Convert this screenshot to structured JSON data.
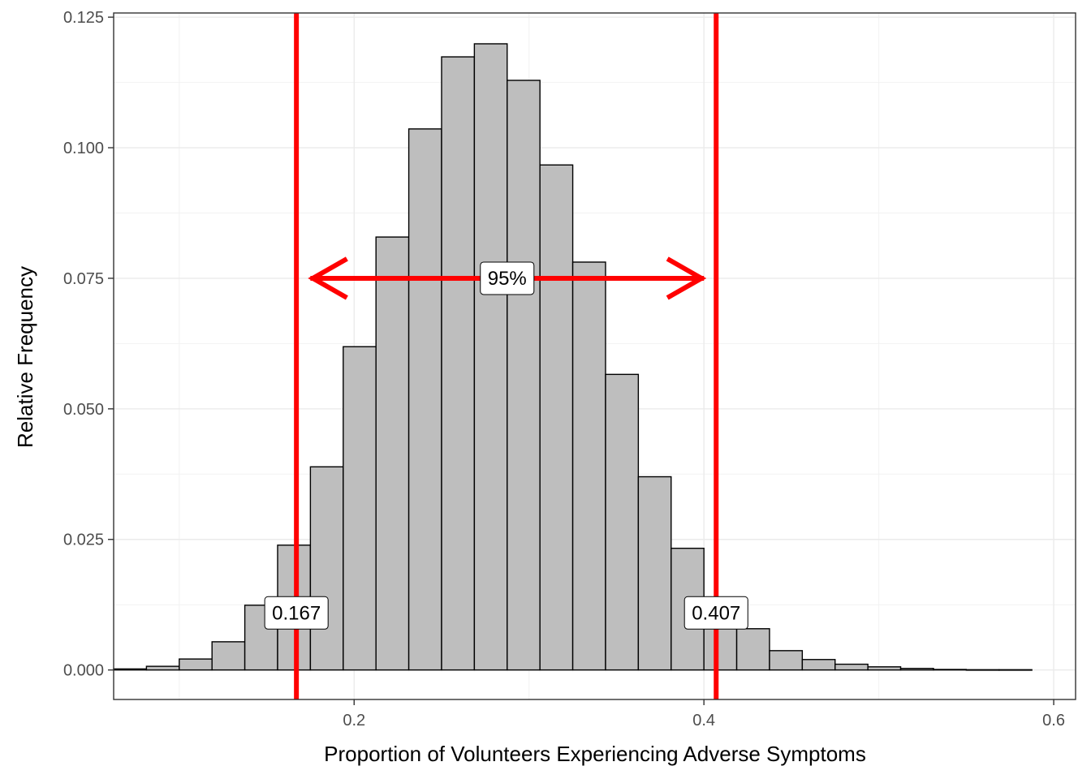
{
  "chart_data": {
    "type": "bar",
    "xlabel": "Proportion of Volunteers Experiencing Adverse Symptoms",
    "ylabel": "Relative Frequency",
    "xlim": [
      0.0625,
      0.6125
    ],
    "ylim": [
      -0.00565,
      0.1258
    ],
    "x_ticks": [
      {
        "value": 0.2,
        "label": "0.2"
      },
      {
        "value": 0.4,
        "label": "0.4"
      },
      {
        "value": 0.6,
        "label": "0.6"
      }
    ],
    "y_ticks": [
      {
        "value": 0.0,
        "label": "0.000"
      },
      {
        "value": 0.025,
        "label": "0.025"
      },
      {
        "value": 0.05,
        "label": "0.050"
      },
      {
        "value": 0.075,
        "label": "0.075"
      },
      {
        "value": 0.1,
        "label": "0.100"
      },
      {
        "value": 0.125,
        "label": "0.125"
      }
    ],
    "bin_width": 0.01875,
    "bins": [
      {
        "x0": 0.0625,
        "x1": 0.08125,
        "value": 0.0002
      },
      {
        "x0": 0.08125,
        "x1": 0.1,
        "value": 0.0007
      },
      {
        "x0": 0.1,
        "x1": 0.11875,
        "value": 0.0021
      },
      {
        "x0": 0.11875,
        "x1": 0.1375,
        "value": 0.0054
      },
      {
        "x0": 0.1375,
        "x1": 0.15625,
        "value": 0.0124
      },
      {
        "x0": 0.15625,
        "x1": 0.175,
        "value": 0.0239
      },
      {
        "x0": 0.175,
        "x1": 0.19375,
        "value": 0.0389
      },
      {
        "x0": 0.19375,
        "x1": 0.2125,
        "value": 0.0619
      },
      {
        "x0": 0.2125,
        "x1": 0.23125,
        "value": 0.0829
      },
      {
        "x0": 0.23125,
        "x1": 0.25,
        "value": 0.1036
      },
      {
        "x0": 0.25,
        "x1": 0.26875,
        "value": 0.1174
      },
      {
        "x0": 0.26875,
        "x1": 0.2875,
        "value": 0.1199
      },
      {
        "x0": 0.2875,
        "x1": 0.30625,
        "value": 0.1129
      },
      {
        "x0": 0.30625,
        "x1": 0.325,
        "value": 0.0967
      },
      {
        "x0": 0.325,
        "x1": 0.34375,
        "value": 0.0781
      },
      {
        "x0": 0.34375,
        "x1": 0.3625,
        "value": 0.0566
      },
      {
        "x0": 0.3625,
        "x1": 0.38125,
        "value": 0.037
      },
      {
        "x0": 0.38125,
        "x1": 0.4,
        "value": 0.0233
      },
      {
        "x0": 0.4,
        "x1": 0.41875,
        "value": 0.0134
      },
      {
        "x0": 0.41875,
        "x1": 0.4375,
        "value": 0.0079
      },
      {
        "x0": 0.4375,
        "x1": 0.45625,
        "value": 0.0037
      },
      {
        "x0": 0.45625,
        "x1": 0.475,
        "value": 0.002
      },
      {
        "x0": 0.475,
        "x1": 0.49375,
        "value": 0.0011
      },
      {
        "x0": 0.49375,
        "x1": 0.5125,
        "value": 0.0006
      },
      {
        "x0": 0.5125,
        "x1": 0.53125,
        "value": 0.0003
      },
      {
        "x0": 0.53125,
        "x1": 0.55,
        "value": 0.0001
      },
      {
        "x0": 0.55,
        "x1": 0.56875,
        "value": 5e-05
      },
      {
        "x0": 0.56875,
        "x1": 0.5875,
        "value": 5e-05
      }
    ],
    "grid": true,
    "colors": {
      "bar_fill": "#bebebe",
      "bar_stroke": "#000000",
      "reference_lines": "#ff0000",
      "grid_major": "#ebebeb",
      "grid_minor": "#f2f2f2",
      "panel_border": "#333333"
    },
    "reference_lines": [
      {
        "x": 0.167,
        "label": "0.167",
        "label_y": 0.01
      },
      {
        "x": 0.407,
        "label": "0.407",
        "label_y": 0.01
      }
    ],
    "interval_arrow": {
      "x_start": 0.175,
      "x_end": 0.4,
      "y": 0.075,
      "label": "95%"
    }
  }
}
